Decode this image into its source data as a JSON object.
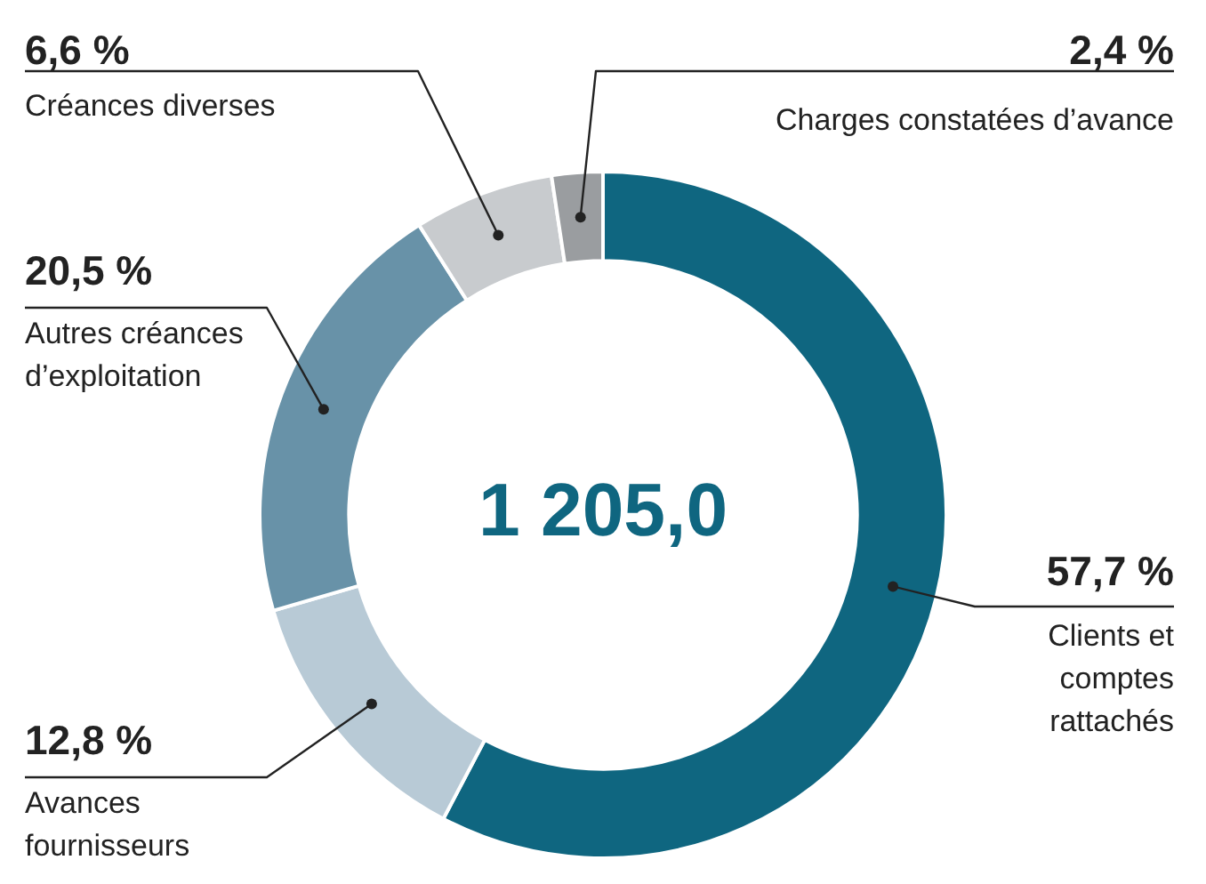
{
  "chart_data": {
    "type": "donut",
    "categories": [
      "Clients et comptes rattachés",
      "Avances fournisseurs",
      "Autres créances d’exploitation",
      "Créances diverses",
      "Charges constatées d’avance"
    ],
    "values": [
      57.7,
      12.8,
      20.5,
      6.6,
      2.4
    ],
    "value_labels": [
      "57,7 %",
      "12,8 %",
      "20,5 %",
      "6,6 %",
      "2,4 %"
    ],
    "colors": [
      "#0f6680",
      "#b8cad6",
      "#6892a8",
      "#c8cbce",
      "#9a9da0"
    ],
    "annotations": [
      "1 205,0"
    ],
    "legend": false
  }
}
